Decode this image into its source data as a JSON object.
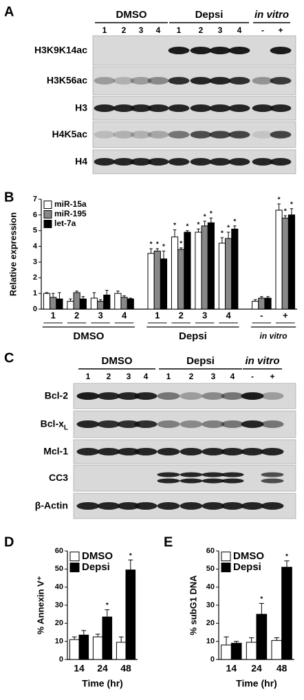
{
  "panels": [
    {
      "label": "A",
      "groups": [
        {
          "name": "DMSO",
          "lanes": [
            "1",
            "2",
            "3",
            "4"
          ]
        },
        {
          "name": "Depsi",
          "lanes": [
            "1",
            "2",
            "3",
            "4"
          ]
        },
        {
          "name": "in vitro",
          "lanes": [
            "-",
            "+"
          ]
        }
      ],
      "rows": [
        {
          "label": "H3K9K14ac"
        },
        {
          "label": "H3K56ac"
        },
        {
          "label": "H3"
        },
        {
          "label": "H4K5ac"
        },
        {
          "label": "H4"
        }
      ]
    },
    {
      "label": "C",
      "groups": [
        {
          "name": "DMSO",
          "lanes": [
            "1",
            "2",
            "3",
            "4"
          ]
        },
        {
          "name": "Depsi",
          "lanes": [
            "1",
            "2",
            "3",
            "4"
          ]
        },
        {
          "name": "in vitro",
          "lanes": [
            "-",
            "+"
          ]
        }
      ],
      "rows": [
        {
          "label": "Bcl-2"
        },
        {
          "label": "Bcl-x",
          "subscript": "L"
        },
        {
          "label": "Mcl-1"
        },
        {
          "label": "CC3"
        },
        {
          "label": "β-Actin"
        }
      ]
    }
  ],
  "chart_data": [
    {
      "type": "bar",
      "panel_label": "B",
      "y_label": "Relative expression",
      "groups": [
        {
          "name": "DMSO",
          "categories": [
            "1",
            "2",
            "3",
            "4"
          ]
        },
        {
          "name": "Depsi",
          "categories": [
            "1",
            "2",
            "3",
            "4"
          ]
        },
        {
          "name": "in vitro",
          "categories": [
            "-",
            "+"
          ]
        }
      ],
      "ylim": [
        0,
        7
      ],
      "yticks": [
        0,
        1,
        2,
        3,
        4,
        5,
        6,
        7
      ],
      "legend": "top-left",
      "series": [
        {
          "name": "miR-15a",
          "color": "#ffffff",
          "values": [
            1.0,
            0.5,
            0.7,
            1.0,
            3.55,
            4.6,
            4.9,
            4.2,
            0.5,
            6.3
          ],
          "errors": [
            0.05,
            0.15,
            0.35,
            0.15,
            0.3,
            0.45,
            0.2,
            0.35,
            0.1,
            0.4
          ],
          "significance": [
            null,
            null,
            null,
            null,
            "*",
            "*",
            "*",
            "*",
            null,
            "*"
          ]
        },
        {
          "name": "miR-195",
          "color": "#888888",
          "values": [
            0.75,
            1.05,
            0.5,
            0.75,
            3.7,
            3.8,
            5.3,
            4.5,
            0.7,
            5.8
          ],
          "errors": [
            0.25,
            0.1,
            0.1,
            0.1,
            0.15,
            0.1,
            0.3,
            0.4,
            0.1,
            0.15
          ],
          "significance": [
            null,
            null,
            null,
            null,
            "*",
            "*",
            "*",
            "*",
            null,
            "*"
          ]
        },
        {
          "name": "let-7a",
          "color": "#000000",
          "values": [
            0.65,
            0.65,
            0.9,
            0.65,
            3.2,
            4.9,
            5.5,
            5.1,
            0.7,
            6.0
          ],
          "errors": [
            0.4,
            0.15,
            0.3,
            0.05,
            0.5,
            0.1,
            0.3,
            0.2,
            0.1,
            0.4
          ],
          "significance": [
            null,
            null,
            null,
            null,
            "*",
            "*",
            "*",
            "*",
            null,
            "*"
          ]
        }
      ]
    },
    {
      "type": "bar",
      "panel_label": "D",
      "y_label": "% Annexin V⁺",
      "x_label": "Time (hr)",
      "categories": [
        "14",
        "24",
        "48"
      ],
      "ylim": [
        0,
        60
      ],
      "yticks": [
        0,
        10,
        20,
        30,
        40,
        50,
        60
      ],
      "legend": "top-left",
      "series": [
        {
          "name": "DMSO",
          "color": "#ffffff",
          "values": [
            11,
            12.5,
            9.5
          ],
          "errors": [
            1.5,
            1.5,
            3
          ],
          "significance": [
            null,
            null,
            null
          ]
        },
        {
          "name": "Depsi",
          "color": "#000000",
          "values": [
            13.5,
            23.5,
            49.5
          ],
          "errors": [
            2.5,
            4,
            5.5
          ],
          "significance": [
            null,
            "*",
            "*"
          ]
        }
      ]
    },
    {
      "type": "bar",
      "panel_label": "E",
      "y_label": "% subG1 DNA",
      "x_label": "Time (hr)",
      "categories": [
        "14",
        "24",
        "48"
      ],
      "ylim": [
        0,
        60
      ],
      "yticks": [
        0,
        10,
        20,
        30,
        40,
        50,
        60
      ],
      "legend": "top-left",
      "series": [
        {
          "name": "DMSO",
          "color": "#ffffff",
          "values": [
            8,
            9.5,
            10.5
          ],
          "errors": [
            4.5,
            2.5,
            1.5
          ],
          "significance": [
            null,
            null,
            null
          ]
        },
        {
          "name": "Depsi",
          "color": "#000000",
          "values": [
            9,
            25,
            51
          ],
          "errors": [
            1,
            6,
            3.5
          ],
          "significance": [
            null,
            "*",
            "*"
          ]
        }
      ]
    }
  ]
}
